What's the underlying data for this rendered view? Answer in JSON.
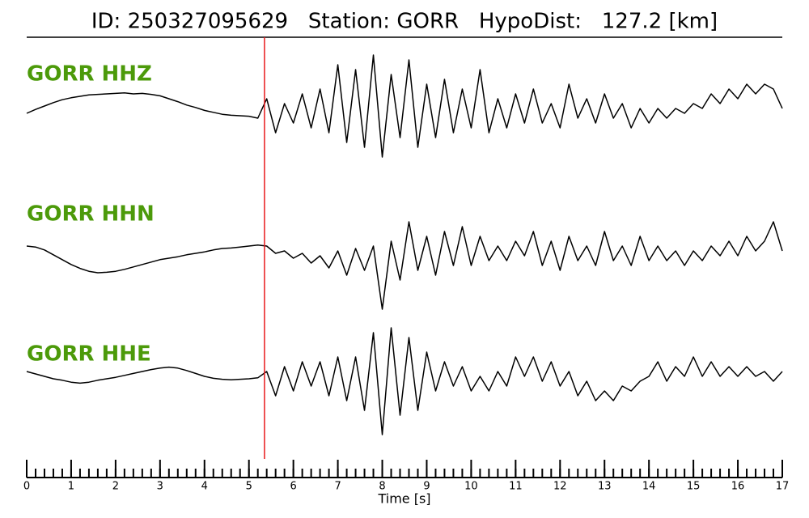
{
  "chart_data": {
    "type": "line",
    "title": "ID: 250327095629   Station: GORR   HypoDist:   127.2 [km]",
    "x_label": "Time [s]",
    "x": [
      0,
      0.2,
      0.4,
      0.6,
      0.8,
      1,
      1.2,
      1.4,
      1.6,
      1.8,
      2,
      2.2,
      2.4,
      2.6,
      2.8,
      3,
      3.2,
      3.4,
      3.6,
      3.8,
      4,
      4.2,
      4.4,
      4.6,
      4.8,
      5,
      5.2,
      5.4,
      5.6,
      5.8,
      6,
      6.2,
      6.4,
      6.6,
      6.8,
      7,
      7.2,
      7.4,
      7.6,
      7.8,
      8,
      8.2,
      8.4,
      8.6,
      8.8,
      9,
      9.2,
      9.4,
      9.6,
      9.8,
      10,
      10.2,
      10.4,
      10.6,
      10.8,
      11,
      11.2,
      11.4,
      11.6,
      11.8,
      12,
      12.2,
      12.4,
      12.6,
      12.8,
      13,
      13.2,
      13.4,
      13.6,
      13.8,
      14,
      14.2,
      14.4,
      14.6,
      14.8,
      15,
      15.2,
      15.4,
      15.6,
      15.8,
      16,
      16.2,
      16.4,
      16.6,
      16.8,
      17
    ],
    "series": [
      {
        "name": "GORR HHZ",
        "color": "#000000",
        "label_color": "#4c9a0a",
        "values": [
          0.0,
          0.08,
          0.15,
          0.22,
          0.28,
          0.32,
          0.35,
          0.38,
          0.39,
          0.4,
          0.41,
          0.42,
          0.4,
          0.41,
          0.39,
          0.36,
          0.3,
          0.24,
          0.17,
          0.12,
          0.06,
          0.02,
          -0.02,
          -0.04,
          -0.05,
          -0.06,
          -0.1,
          0.3,
          -0.4,
          0.2,
          -0.2,
          0.4,
          -0.3,
          0.5,
          -0.4,
          1.0,
          -0.6,
          0.9,
          -0.7,
          1.2,
          -0.9,
          0.8,
          -0.5,
          1.1,
          -0.7,
          0.6,
          -0.5,
          0.7,
          -0.4,
          0.5,
          -0.3,
          0.9,
          -0.4,
          0.3,
          -0.3,
          0.4,
          -0.2,
          0.5,
          -0.2,
          0.2,
          -0.3,
          0.6,
          -0.1,
          0.3,
          -0.2,
          0.4,
          -0.1,
          0.2,
          -0.3,
          0.1,
          -0.2,
          0.1,
          -0.1,
          0.1,
          0.0,
          0.2,
          0.1,
          0.4,
          0.2,
          0.5,
          0.3,
          0.6,
          0.4,
          0.6,
          0.5,
          0.1
        ]
      },
      {
        "name": "GORR HHN",
        "color": "#000000",
        "label_color": "#4c9a0a",
        "values": [
          0.1,
          0.08,
          0.02,
          -0.08,
          -0.18,
          -0.28,
          -0.36,
          -0.42,
          -0.45,
          -0.44,
          -0.42,
          -0.38,
          -0.33,
          -0.28,
          -0.23,
          -0.18,
          -0.15,
          -0.12,
          -0.08,
          -0.05,
          -0.02,
          0.02,
          0.05,
          0.06,
          0.08,
          0.1,
          0.12,
          0.1,
          -0.05,
          0.0,
          -0.15,
          -0.05,
          -0.25,
          -0.1,
          -0.35,
          0.0,
          -0.5,
          0.05,
          -0.4,
          0.1,
          -1.2,
          0.2,
          -0.6,
          0.6,
          -0.4,
          0.3,
          -0.5,
          0.4,
          -0.3,
          0.5,
          -0.3,
          0.3,
          -0.2,
          0.1,
          -0.2,
          0.2,
          -0.1,
          0.4,
          -0.3,
          0.2,
          -0.4,
          0.3,
          -0.2,
          0.1,
          -0.3,
          0.4,
          -0.2,
          0.1,
          -0.3,
          0.3,
          -0.2,
          0.1,
          -0.2,
          0.0,
          -0.3,
          0.0,
          -0.2,
          0.1,
          -0.1,
          0.2,
          -0.1,
          0.3,
          0.0,
          0.2,
          0.6,
          0.0
        ]
      },
      {
        "name": "GORR HHE",
        "color": "#000000",
        "label_color": "#4c9a0a",
        "values": [
          0.1,
          0.05,
          0.0,
          -0.05,
          -0.08,
          -0.12,
          -0.14,
          -0.12,
          -0.08,
          -0.05,
          -0.02,
          0.02,
          0.06,
          0.1,
          0.14,
          0.17,
          0.19,
          0.17,
          0.12,
          0.06,
          0.0,
          -0.04,
          -0.06,
          -0.07,
          -0.06,
          -0.05,
          -0.03,
          0.1,
          -0.4,
          0.2,
          -0.3,
          0.3,
          -0.2,
          0.3,
          -0.4,
          0.4,
          -0.5,
          0.4,
          -0.7,
          0.9,
          -1.2,
          1.0,
          -0.8,
          0.8,
          -0.7,
          0.5,
          -0.3,
          0.3,
          -0.2,
          0.2,
          -0.3,
          0.0,
          -0.3,
          0.1,
          -0.2,
          0.4,
          0.0,
          0.4,
          -0.1,
          0.3,
          -0.2,
          0.1,
          -0.4,
          -0.1,
          -0.5,
          -0.3,
          -0.5,
          -0.2,
          -0.3,
          -0.1,
          0.0,
          0.3,
          -0.1,
          0.2,
          0.0,
          0.4,
          0.0,
          0.3,
          0.0,
          0.2,
          0.0,
          0.2,
          0.0,
          0.1,
          -0.1,
          0.1
        ]
      }
    ],
    "xlim": [
      0,
      17
    ],
    "xticks": [
      0,
      1,
      2,
      3,
      4,
      5,
      6,
      7,
      8,
      9,
      10,
      11,
      12,
      13,
      14,
      15,
      16,
      17
    ],
    "xminor_step": 0.2,
    "pick": {
      "x": 5.35,
      "color": "#e8191b"
    }
  }
}
